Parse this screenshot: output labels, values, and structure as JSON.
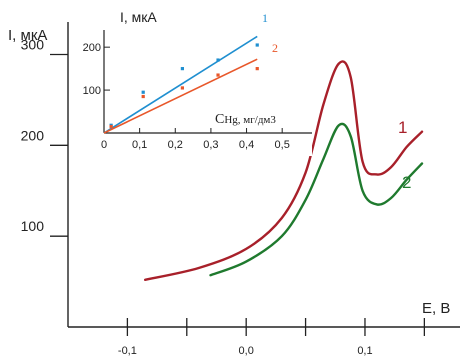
{
  "chart_data": [
    {
      "type": "line",
      "ylabel": "I, мкА",
      "xlabel": "E, B",
      "y_ticks": [
        100,
        200,
        300
      ],
      "x_ticks": [
        -0.1,
        0.0,
        0.1
      ],
      "x_tick_labels": [
        "-0,1",
        "0,0",
        "0,1"
      ],
      "xlim": [
        -0.15,
        0.18
      ],
      "ylim": [
        0,
        360
      ],
      "grid": false,
      "series": [
        {
          "name": "1",
          "color": "#a8202a",
          "x": [
            -0.085,
            -0.04,
            0.0,
            0.03,
            0.05,
            0.065,
            0.078,
            0.088,
            0.098,
            0.11,
            0.122,
            0.135,
            0.148
          ],
          "y": [
            52,
            65,
            86,
            120,
            170,
            245,
            290,
            275,
            182,
            168,
            176,
            198,
            215
          ]
        },
        {
          "name": "2",
          "color": "#1f7a2e",
          "x": [
            -0.03,
            0.0,
            0.03,
            0.05,
            0.065,
            0.078,
            0.088,
            0.098,
            0.11,
            0.122,
            0.135,
            0.148
          ],
          "y": [
            57,
            72,
            100,
            140,
            185,
            222,
            210,
            150,
            135,
            142,
            162,
            180
          ]
        }
      ]
    },
    {
      "type": "scatter",
      "ylabel": "I, мкА",
      "xlabel_main": "C",
      "xlabel_sub": "Hg, мг/дм3",
      "x_ticks": [
        0,
        0.1,
        0.2,
        0.3,
        0.4,
        0.5
      ],
      "x_tick_labels": [
        "0",
        "0,1",
        "0,2",
        "0,3",
        "0,4",
        "0,5"
      ],
      "y_ticks": [
        100,
        200
      ],
      "xlim": [
        0,
        0.55
      ],
      "ylim": [
        0,
        240
      ],
      "grid": false,
      "series": [
        {
          "name": "1",
          "color": "#1f8fd0",
          "line": {
            "x": [
              0,
              0.43
            ],
            "y": [
              0,
              225
            ]
          },
          "points": {
            "x": [
              0.02,
              0.11,
              0.22,
              0.32,
              0.43
            ],
            "y": [
              18,
              95,
              150,
              170,
              205
            ]
          }
        },
        {
          "name": "2",
          "color": "#e8572a",
          "line": {
            "x": [
              0,
              0.43
            ],
            "y": [
              0,
              172
            ]
          },
          "points": {
            "x": [
              0.02,
              0.11,
              0.22,
              0.32,
              0.43
            ],
            "y": [
              15,
              85,
              105,
              135,
              150
            ]
          }
        }
      ]
    }
  ]
}
